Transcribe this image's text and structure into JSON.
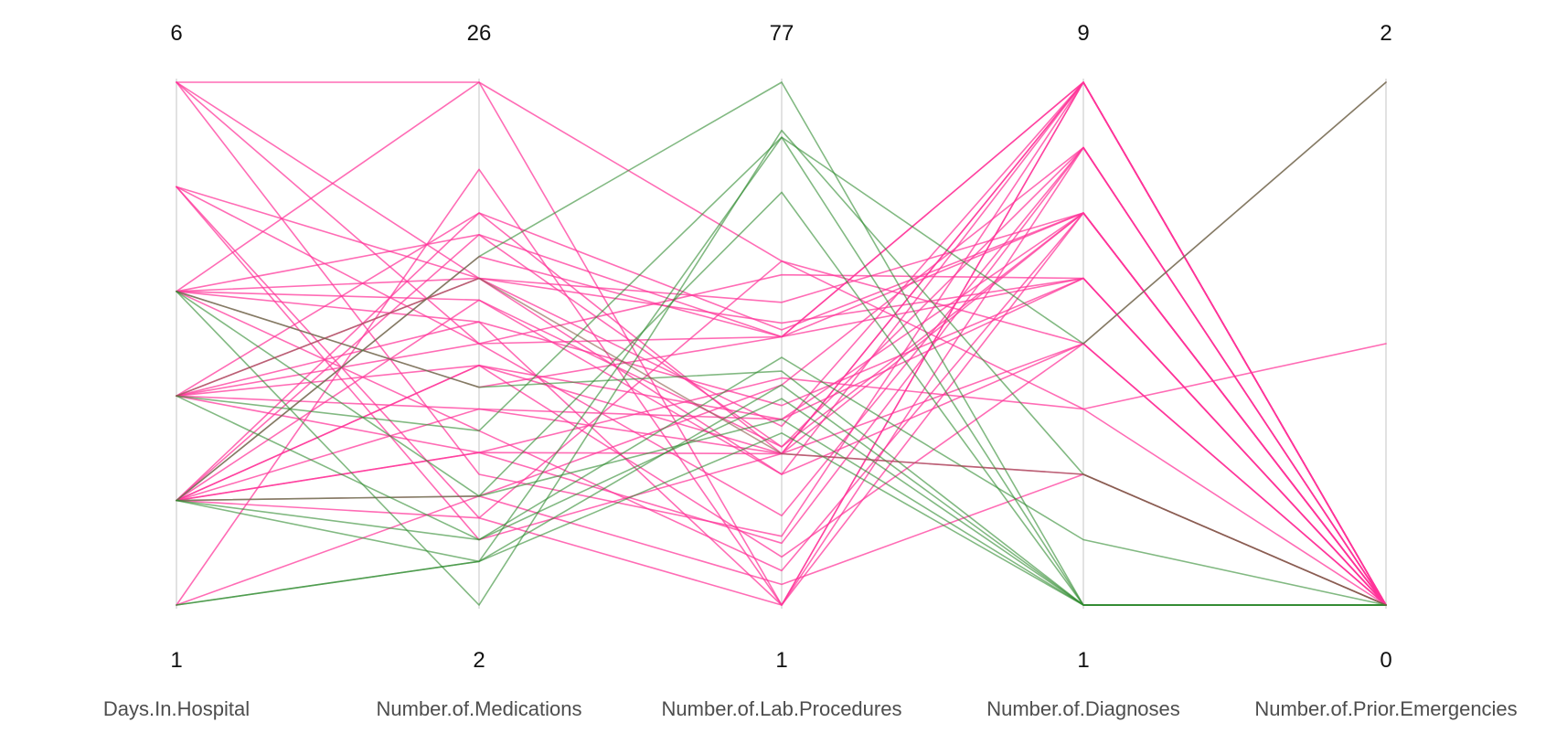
{
  "chart_data": {
    "type": "parallel_coordinates",
    "axes": [
      {
        "name": "Days.In.Hospital",
        "min": 1,
        "max": 6,
        "min_label": "1",
        "max_label": "6"
      },
      {
        "name": "Number.of.Medications",
        "min": 2,
        "max": 26,
        "min_label": "2",
        "max_label": "26"
      },
      {
        "name": "Number.of.Lab.Procedures",
        "min": 1,
        "max": 77,
        "min_label": "1",
        "max_label": "77"
      },
      {
        "name": "Number.of.Diagnoses",
        "min": 1,
        "max": 9,
        "min_label": "1",
        "max_label": "9"
      },
      {
        "name": "Number.of.Prior.Emergencies",
        "min": 0,
        "max": 2,
        "min_label": "0",
        "max_label": "2"
      }
    ],
    "colors": {
      "pink": "#ff3399",
      "green": "#2e8b2e",
      "brown": "#8b5a4a"
    },
    "records": [
      {
        "color": "pink",
        "values": [
          6,
          26,
          1,
          9,
          0
        ]
      },
      {
        "color": "pink",
        "values": [
          6,
          14,
          40,
          9,
          0
        ]
      },
      {
        "color": "pink",
        "values": [
          6,
          8,
          11,
          9,
          0
        ]
      },
      {
        "color": "pink",
        "values": [
          5,
          14,
          14,
          8,
          0
        ]
      },
      {
        "color": "pink",
        "values": [
          5,
          6,
          51,
          4,
          1
        ]
      },
      {
        "color": "pink",
        "values": [
          4,
          26,
          51,
          5,
          0
        ]
      },
      {
        "color": "pink",
        "values": [
          4,
          19,
          40,
          6,
          0
        ]
      },
      {
        "color": "pink",
        "values": [
          4,
          16,
          20,
          9,
          0
        ]
      },
      {
        "color": "pink",
        "values": [
          4,
          15,
          1,
          8,
          0
        ]
      },
      {
        "color": "pink",
        "values": [
          4,
          10,
          6,
          7,
          0
        ]
      },
      {
        "color": "pink",
        "values": [
          3,
          17,
          27,
          9,
          0
        ]
      },
      {
        "color": "pink",
        "values": [
          3,
          13,
          28,
          7,
          0
        ]
      },
      {
        "color": "pink",
        "values": [
          3,
          14,
          49,
          6,
          0
        ]
      },
      {
        "color": "pink",
        "values": [
          3,
          11,
          23,
          5,
          0
        ]
      },
      {
        "color": "pink",
        "values": [
          3,
          9,
          10,
          8,
          0
        ]
      },
      {
        "color": "pink",
        "values": [
          2,
          20,
          23,
          3,
          0
        ]
      },
      {
        "color": "pink",
        "values": [
          2,
          18,
          40,
          9,
          0
        ]
      },
      {
        "color": "pink",
        "values": [
          2,
          16,
          24,
          8,
          0
        ]
      },
      {
        "color": "pink",
        "values": [
          2,
          13,
          23,
          9,
          0
        ]
      },
      {
        "color": "pink",
        "values": [
          2,
          11,
          28,
          6,
          0
        ]
      },
      {
        "color": "pink",
        "values": [
          2,
          9,
          23,
          7,
          0
        ]
      },
      {
        "color": "pink",
        "values": [
          2,
          6,
          1,
          9,
          0
        ]
      },
      {
        "color": "pink",
        "values": [
          2,
          13,
          8,
          5,
          0
        ]
      },
      {
        "color": "pink",
        "values": [
          2,
          9,
          34,
          4,
          0
        ]
      },
      {
        "color": "pink",
        "values": [
          2,
          7,
          4,
          3,
          0
        ]
      },
      {
        "color": "pink",
        "values": [
          1,
          7,
          33,
          8,
          0
        ]
      },
      {
        "color": "pink",
        "values": [
          5,
          5,
          23,
          9,
          0
        ]
      },
      {
        "color": "pink",
        "values": [
          1,
          22,
          1,
          7,
          0
        ]
      },
      {
        "color": "pink",
        "values": [
          4,
          17,
          45,
          7,
          0
        ]
      },
      {
        "color": "pink",
        "values": [
          5,
          17,
          42,
          6,
          0
        ]
      },
      {
        "color": "pink",
        "values": [
          3,
          20,
          41,
          7,
          0
        ]
      },
      {
        "color": "pink",
        "values": [
          6,
          17,
          20,
          5,
          2
        ]
      },
      {
        "color": "pink",
        "values": [
          3,
          15,
          30,
          6,
          0
        ]
      },
      {
        "color": "pink",
        "values": [
          2,
          19,
          24,
          7,
          0
        ]
      },
      {
        "color": "pink",
        "values": [
          4,
          12,
          40,
          7,
          0
        ]
      },
      {
        "color": "green",
        "values": [
          1,
          4,
          33,
          1,
          0
        ]
      },
      {
        "color": "green",
        "values": [
          1,
          4,
          69,
          1,
          0
        ]
      },
      {
        "color": "green",
        "values": [
          2,
          5,
          31,
          1,
          0
        ]
      },
      {
        "color": "green",
        "values": [
          2,
          7,
          28,
          1,
          0
        ]
      },
      {
        "color": "green",
        "values": [
          3,
          10,
          69,
          5,
          2
        ]
      },
      {
        "color": "green",
        "values": [
          4,
          2,
          70,
          3,
          0
        ]
      },
      {
        "color": "green",
        "values": [
          4,
          12,
          35,
          1,
          0
        ]
      },
      {
        "color": "green",
        "values": [
          2,
          18,
          77,
          1,
          0
        ]
      },
      {
        "color": "green",
        "values": [
          3,
          5,
          37,
          2,
          0
        ]
      },
      {
        "color": "green",
        "values": [
          2,
          4,
          26,
          1,
          0
        ]
      },
      {
        "color": "green",
        "values": [
          4,
          7,
          61,
          1,
          0
        ]
      },
      {
        "color": "brown",
        "values": [
          3,
          17,
          23,
          3,
          0
        ]
      }
    ]
  }
}
